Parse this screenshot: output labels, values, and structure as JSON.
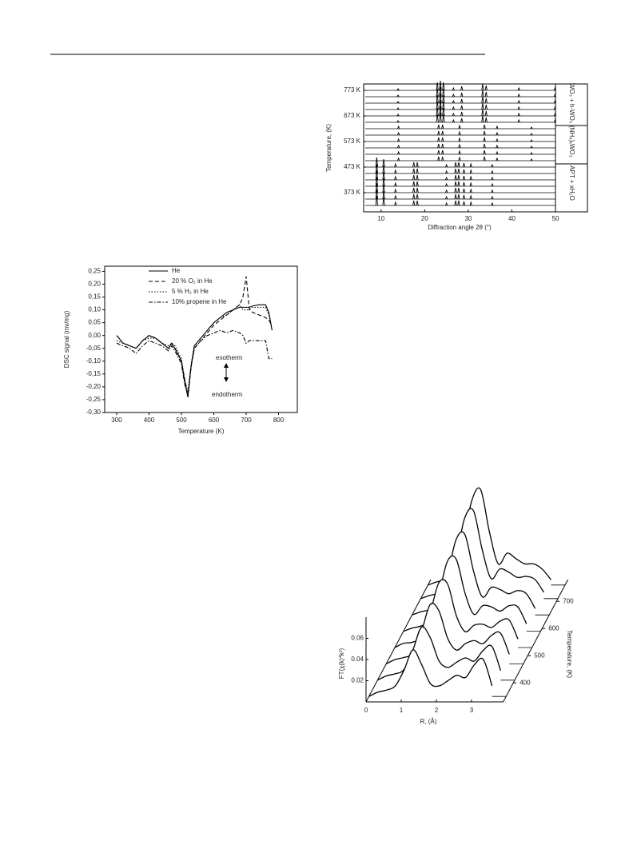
{
  "chart_data": [
    {
      "type": "waterfall",
      "ylabel": "Temperature, (K)",
      "xlabel": "Diffraction angle 2θ (°)",
      "xlim": [
        6,
        50
      ],
      "xticks": [
        10,
        20,
        30,
        40,
        50
      ],
      "ylim": [
        298,
        798
      ],
      "yticks": [
        {
          "value": 373,
          "label": "373 K"
        },
        {
          "value": 473,
          "label": "473 K"
        },
        {
          "value": 573,
          "label": "573 K"
        },
        {
          "value": 673,
          "label": "673 K"
        },
        {
          "value": 773,
          "label": "773 K"
        }
      ],
      "phases": [
        {
          "name": "APT + xH₂O",
          "temperatures": [
            323,
            348,
            373,
            398,
            423,
            448,
            473
          ],
          "peaks_x": [
            9,
            10.6,
            13.3,
            17.5,
            18.3,
            25,
            27.1,
            27.8,
            29,
            30.6,
            35.5
          ],
          "peaks": [
            6,
            5,
            2,
            3,
            3,
            1.5,
            3,
            3,
            2.5,
            2,
            1.5
          ]
        },
        {
          "name": "(NH₄)ₓWO₃",
          "temperatures": [
            498,
            523,
            548,
            573,
            598,
            623
          ],
          "peaks_x": [
            14,
            23.2,
            24.1,
            28,
            33.7,
            36.6,
            44.5
          ],
          "peaks": [
            1.5,
            2.5,
            2.5,
            2,
            2.5,
            1.5,
            1
          ]
        },
        {
          "name": "WO₃ + h-WO₃",
          "temperatures": [
            648,
            673,
            698,
            723,
            748,
            773
          ],
          "peaks_x": [
            13.9,
            22.9,
            23.6,
            24.3,
            26.6,
            28.5,
            33.3,
            34.1,
            41.6,
            49.9
          ],
          "peaks": [
            1,
            5,
            6,
            5,
            1.5,
            2.5,
            4,
            3,
            1.5,
            1.5
          ]
        }
      ]
    },
    {
      "type": "line",
      "xlabel": "Temperature (K)",
      "ylabel": "DSC signal (mv/mg)",
      "xlim": [
        263,
        858
      ],
      "xticks": [
        300,
        400,
        500,
        600,
        700,
        800
      ],
      "ylim": [
        -0.3,
        0.27
      ],
      "yticks": [
        {
          "value": -0.3,
          "label": "-0,30"
        },
        {
          "value": -0.25,
          "label": "-0,25"
        },
        {
          "value": -0.2,
          "label": "-0,20"
        },
        {
          "value": -0.15,
          "label": "-0,15"
        },
        {
          "value": -0.1,
          "label": "-0,10"
        },
        {
          "value": -0.05,
          "label": "-0,05"
        },
        {
          "value": 0,
          "label": "0,00"
        },
        {
          "value": 0.05,
          "label": "0,05"
        },
        {
          "value": 0.1,
          "label": "0,10"
        },
        {
          "value": 0.15,
          "label": "0,15"
        },
        {
          "value": 0.2,
          "label": "0,20"
        },
        {
          "value": 0.25,
          "label": "0,25"
        }
      ],
      "annotations": [
        "exotherm",
        "endotherm"
      ],
      "x": [
        300,
        320,
        340,
        360,
        380,
        400,
        420,
        440,
        460,
        470,
        480,
        500,
        510,
        520,
        530,
        540,
        560,
        580,
        600,
        620,
        640,
        660,
        680,
        690,
        700,
        710,
        720,
        740,
        760,
        770,
        780
      ],
      "series": [
        {
          "name": "He",
          "color": "#000000",
          "dash": "solid",
          "values": [
            0.0,
            -0.03,
            -0.04,
            -0.05,
            -0.02,
            0.0,
            -0.01,
            -0.03,
            -0.05,
            -0.03,
            -0.05,
            -0.1,
            -0.18,
            -0.24,
            -0.12,
            -0.04,
            -0.01,
            0.02,
            0.05,
            0.07,
            0.09,
            0.1,
            0.11,
            0.11,
            0.11,
            0.11,
            0.115,
            0.12,
            0.12,
            0.09,
            0.02
          ]
        },
        {
          "name": "20 % O₂ in He",
          "color": "#000000",
          "dash": "dashed",
          "values": [
            0.0,
            -0.03,
            -0.04,
            -0.05,
            -0.02,
            0.0,
            -0.01,
            -0.03,
            -0.05,
            -0.03,
            -0.05,
            -0.1,
            -0.17,
            -0.24,
            -0.12,
            -0.05,
            -0.02,
            0.01,
            0.04,
            0.06,
            0.08,
            0.1,
            0.12,
            0.15,
            0.23,
            0.1,
            0.09,
            0.08,
            0.07,
            0.06,
            0.04
          ]
        },
        {
          "name": "5 % H₂ in He",
          "color": "#000000",
          "dash": "dotted",
          "values": [
            -0.02,
            -0.03,
            -0.04,
            -0.05,
            -0.02,
            -0.01,
            -0.01,
            -0.03,
            -0.04,
            -0.03,
            -0.04,
            -0.09,
            -0.17,
            -0.22,
            -0.11,
            -0.04,
            -0.01,
            0.02,
            0.05,
            0.07,
            0.08,
            0.1,
            0.12,
            0.1,
            0.1,
            0.1,
            0.11,
            0.11,
            0.11,
            0.08,
            0.02
          ]
        },
        {
          "name": "10% propene in He",
          "color": "#000000",
          "dash": "dashdot",
          "values": [
            -0.03,
            -0.04,
            -0.05,
            -0.07,
            -0.04,
            -0.02,
            -0.03,
            -0.04,
            -0.06,
            -0.04,
            -0.06,
            -0.11,
            -0.19,
            -0.23,
            -0.12,
            -0.05,
            -0.02,
            0.0,
            0.01,
            0.02,
            0.01,
            0.02,
            0.01,
            0.0,
            -0.03,
            -0.02,
            -0.02,
            -0.02,
            -0.02,
            -0.09,
            -0.09
          ]
        }
      ]
    },
    {
      "type": "ridgeline",
      "xlabel": "R, (Å)",
      "ylabel": "FT(χ(k)*k³)",
      "zlabel": "Temperature, (K)",
      "xlim": [
        0,
        3.9
      ],
      "xticks": [
        0,
        1,
        2,
        3
      ],
      "ylim": [
        0,
        0.08
      ],
      "yticks": [
        0.02,
        0.04,
        0.06
      ],
      "zlim": [
        330,
        780
      ],
      "zticks": [
        400,
        500,
        600,
        700
      ],
      "x": [
        0,
        0.25,
        0.5,
        0.75,
        1,
        1.25,
        1.5,
        1.75,
        2,
        2.25,
        2.5,
        2.75,
        3,
        3.25,
        3.5
      ],
      "temperatures": [
        350,
        410,
        470,
        530,
        590,
        650,
        710,
        760
      ],
      "series": [
        {
          "values": [
            0,
            0.004,
            0.006,
            0.01,
            0.025,
            0.044,
            0.03,
            0.012,
            0.01,
            0.015,
            0.02,
            0.018,
            0.03,
            0.035,
            0.01
          ]
        },
        {
          "values": [
            0,
            0.004,
            0.006,
            0.01,
            0.028,
            0.05,
            0.04,
            0.018,
            0.012,
            0.017,
            0.021,
            0.018,
            0.028,
            0.032,
            0.009
          ]
        },
        {
          "values": [
            0,
            0.004,
            0.006,
            0.01,
            0.03,
            0.056,
            0.05,
            0.024,
            0.013,
            0.019,
            0.022,
            0.019,
            0.027,
            0.029,
            0.009
          ]
        },
        {
          "values": [
            0,
            0.004,
            0.005,
            0.01,
            0.032,
            0.061,
            0.06,
            0.03,
            0.015,
            0.021,
            0.022,
            0.019,
            0.025,
            0.026,
            0.008
          ]
        },
        {
          "values": [
            0,
            0.003,
            0.005,
            0.01,
            0.034,
            0.066,
            0.068,
            0.036,
            0.016,
            0.024,
            0.023,
            0.019,
            0.024,
            0.023,
            0.007
          ]
        },
        {
          "values": [
            0,
            0.003,
            0.005,
            0.01,
            0.036,
            0.071,
            0.076,
            0.041,
            0.017,
            0.026,
            0.024,
            0.02,
            0.023,
            0.02,
            0.006
          ]
        },
        {
          "values": [
            0,
            0.003,
            0.005,
            0.01,
            0.038,
            0.076,
            0.083,
            0.046,
            0.019,
            0.028,
            0.025,
            0.02,
            0.021,
            0.018,
            0.006
          ]
        },
        {
          "values": [
            0,
            0.003,
            0.005,
            0.01,
            0.04,
            0.08,
            0.09,
            0.05,
            0.02,
            0.03,
            0.025,
            0.02,
            0.02,
            0.015,
            0.005
          ]
        }
      ]
    }
  ]
}
